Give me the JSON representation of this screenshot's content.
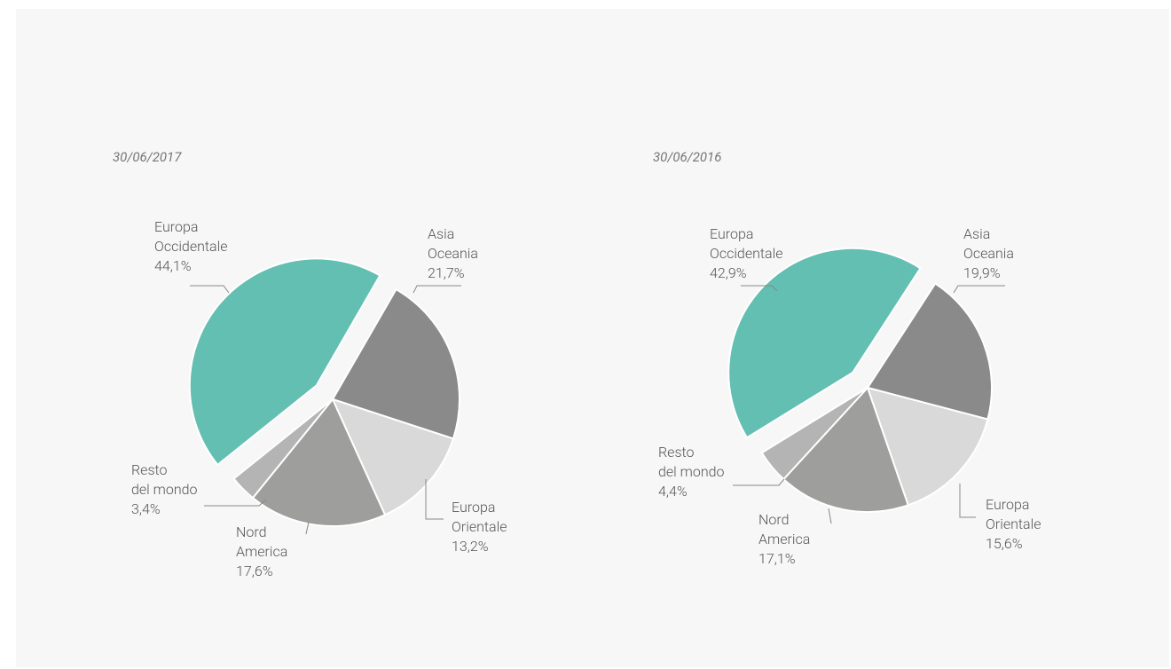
{
  "chart_data": [
    {
      "type": "pie",
      "title": "30/06/2017",
      "categories": [
        "Asia\nOceania",
        "Europa\nOrientale",
        "Nord\nAmerica",
        "Resto\ndel mondo",
        "Europa\nOccidentale"
      ],
      "values": [
        21.7,
        13.2,
        17.6,
        3.4,
        44.1
      ],
      "value_labels": [
        "21,7%",
        "13,2%",
        "17,6%",
        "3,4%",
        "44,1%"
      ],
      "colors": [
        "#8a8a8a",
        "#d9d9d9",
        "#9e9e9c",
        "#b4b4b4",
        "#62bfb2"
      ]
    },
    {
      "type": "pie",
      "title": "30/06/2016",
      "categories": [
        "Asia\nOceania",
        "Europa\nOrientale",
        "Nord\nAmerica",
        "Resto\ndel mondo",
        "Europa\nOccidentale"
      ],
      "values": [
        19.9,
        15.6,
        17.1,
        4.4,
        42.9
      ],
      "value_labels": [
        "19,9%",
        "15,6%",
        "17,1%",
        "4,4%",
        "42,9%"
      ],
      "colors": [
        "#8a8a8a",
        "#d9d9d9",
        "#9e9e9c",
        "#b4b4b4",
        "#62bfb2"
      ]
    }
  ]
}
